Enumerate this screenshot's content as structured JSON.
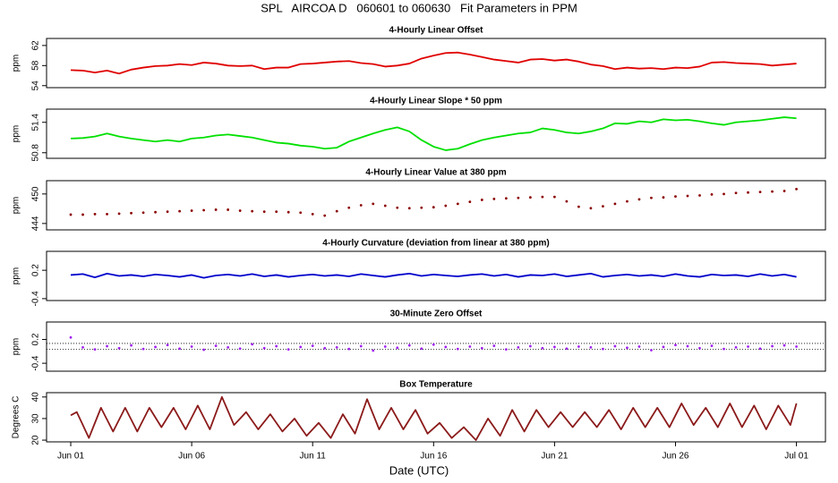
{
  "title": "SPL   AIRCOA D   060601 to 060630   Fit Parameters in PPM",
  "xlabel": "Date (UTC)",
  "chart_data": [
    {
      "type": "line",
      "title": "4-Hourly Linear Offset",
      "ylabel": "ppm",
      "color": "#e00000",
      "style": "line",
      "xlim": [
        -1,
        31.2
      ],
      "ylim": [
        53.6,
        63.4
      ],
      "yticks": [
        54,
        58,
        62
      ],
      "x": [
        0,
        0.5,
        1,
        1.5,
        2,
        2.5,
        3,
        3.5,
        4,
        4.5,
        5,
        5.5,
        6,
        6.5,
        7,
        7.5,
        8,
        8.5,
        9,
        9.5,
        10,
        10.5,
        11,
        11.5,
        12,
        12.5,
        13,
        13.5,
        14,
        14.5,
        15,
        15.5,
        16,
        16.5,
        17,
        17.5,
        18,
        18.5,
        19,
        19.5,
        20,
        20.5,
        21,
        21.5,
        22,
        22.5,
        23,
        23.5,
        24,
        24.5,
        25,
        25.5,
        26,
        26.5,
        27,
        27.5,
        28,
        28.5,
        29,
        29.5,
        30
      ],
      "values": [
        57.1,
        57.0,
        56.6,
        57.0,
        56.4,
        57.2,
        57.6,
        57.9,
        58.0,
        58.3,
        58.1,
        58.6,
        58.4,
        58.0,
        57.9,
        58.0,
        57.3,
        57.6,
        57.6,
        58.3,
        58.4,
        58.6,
        58.8,
        58.9,
        58.5,
        58.3,
        57.8,
        58.0,
        58.4,
        59.4,
        60.0,
        60.5,
        60.6,
        60.2,
        59.7,
        59.2,
        58.9,
        58.6,
        59.2,
        59.3,
        59.0,
        59.2,
        58.8,
        58.2,
        57.9,
        57.3,
        57.6,
        57.4,
        57.5,
        57.3,
        57.6,
        57.5,
        57.8,
        58.6,
        58.7,
        58.5,
        58.4,
        58.3,
        58.0,
        58.2,
        58.4
      ]
    },
    {
      "type": "line",
      "title": "4-Hourly Linear Slope * 50 ppm",
      "ylabel": "ppm",
      "color": "#00e000",
      "style": "line",
      "xlim": [
        -1,
        31.2
      ],
      "ylim": [
        50.69,
        51.66
      ],
      "yticks": [
        50.8,
        51.4
      ],
      "x": [
        0,
        0.5,
        1,
        1.5,
        2,
        2.5,
        3,
        3.5,
        4,
        4.5,
        5,
        5.5,
        6,
        6.5,
        7,
        7.5,
        8,
        8.5,
        9,
        9.5,
        10,
        10.5,
        11,
        11.5,
        12,
        12.5,
        13,
        13.5,
        14,
        14.5,
        15,
        15.5,
        16,
        16.5,
        17,
        17.5,
        18,
        18.5,
        19,
        19.5,
        20,
        20.5,
        21,
        21.5,
        22,
        22.5,
        23,
        23.5,
        24,
        24.5,
        25,
        25.5,
        26,
        26.5,
        27,
        27.5,
        28,
        28.5,
        29,
        29.5,
        30
      ],
      "values": [
        51.08,
        51.09,
        51.12,
        51.18,
        51.12,
        51.08,
        51.05,
        51.02,
        51.05,
        51.02,
        51.08,
        51.1,
        51.14,
        51.16,
        51.13,
        51.1,
        51.05,
        51.0,
        50.98,
        50.94,
        50.92,
        50.88,
        50.9,
        51.02,
        51.1,
        51.18,
        51.25,
        51.3,
        51.22,
        51.05,
        50.92,
        50.85,
        50.88,
        50.97,
        51.05,
        51.1,
        51.14,
        51.18,
        51.2,
        51.28,
        51.25,
        51.2,
        51.18,
        51.22,
        51.28,
        51.38,
        51.37,
        51.42,
        51.4,
        51.46,
        51.44,
        51.45,
        51.42,
        51.38,
        51.35,
        51.4,
        51.42,
        51.44,
        51.47,
        51.5,
        51.48
      ]
    },
    {
      "type": "line",
      "title": "4-Hourly Linear Value at 380 ppm",
      "ylabel": "ppm",
      "color": "#8b0000",
      "style": "points",
      "xlim": [
        -1,
        31.2
      ],
      "ylim": [
        442.7,
        452.7
      ],
      "yticks": [
        444,
        450
      ],
      "x": [
        0,
        0.5,
        1,
        1.5,
        2,
        2.5,
        3,
        3.5,
        4,
        4.5,
        5,
        5.5,
        6,
        6.5,
        7,
        7.5,
        8,
        8.5,
        9,
        9.5,
        10,
        10.5,
        11,
        11.5,
        12,
        12.5,
        13,
        13.5,
        14,
        14.5,
        15,
        15.5,
        16,
        16.5,
        17,
        17.5,
        18,
        18.5,
        19,
        19.5,
        20,
        20.5,
        21,
        21.5,
        22,
        22.5,
        23,
        23.5,
        24,
        24.5,
        25,
        25.5,
        26,
        26.5,
        27,
        27.5,
        28,
        28.5,
        29,
        29.5,
        30
      ],
      "values": [
        445.8,
        445.8,
        445.9,
        445.9,
        446.0,
        446.1,
        446.2,
        446.3,
        446.4,
        446.5,
        446.6,
        446.7,
        446.8,
        446.8,
        446.6,
        446.5,
        446.4,
        446.4,
        446.3,
        446.2,
        445.9,
        445.6,
        446.5,
        447.2,
        447.7,
        448.0,
        447.6,
        447.2,
        447.1,
        447.2,
        447.3,
        447.6,
        448.0,
        448.4,
        448.8,
        449.0,
        449.1,
        449.2,
        449.3,
        449.4,
        449.4,
        448.5,
        447.4,
        447.1,
        447.5,
        448.0,
        448.5,
        448.9,
        449.2,
        449.3,
        449.5,
        449.6,
        449.7,
        449.9,
        450.0,
        450.2,
        450.3,
        450.4,
        450.5,
        450.6,
        451.0
      ]
    },
    {
      "type": "line",
      "title": "4-Hourly Curvature (deviation from linear at 380 ppm)",
      "ylabel": "ppm",
      "color": "#0000cc",
      "style": "line",
      "xlim": [
        -1,
        31.2
      ],
      "ylim": [
        -0.44,
        0.6
      ],
      "yticks": [
        -0.4,
        0.2
      ],
      "x": [
        0,
        0.5,
        1,
        1.5,
        2,
        2.5,
        3,
        3.5,
        4,
        4.5,
        5,
        5.5,
        6,
        6.5,
        7,
        7.5,
        8,
        8.5,
        9,
        9.5,
        10,
        10.5,
        11,
        11.5,
        12,
        12.5,
        13,
        13.5,
        14,
        14.5,
        15,
        15.5,
        16,
        16.5,
        17,
        17.5,
        18,
        18.5,
        19,
        19.5,
        20,
        20.5,
        21,
        21.5,
        22,
        22.5,
        23,
        23.5,
        24,
        24.5,
        25,
        25.5,
        26,
        26.5,
        27,
        27.5,
        28,
        28.5,
        29,
        29.5,
        30
      ],
      "values": [
        0.1,
        0.12,
        0.05,
        0.13,
        0.08,
        0.1,
        0.07,
        0.11,
        0.09,
        0.06,
        0.1,
        0.04,
        0.09,
        0.11,
        0.08,
        0.12,
        0.07,
        0.1,
        0.06,
        0.09,
        0.11,
        0.08,
        0.1,
        0.07,
        0.12,
        0.09,
        0.06,
        0.1,
        0.13,
        0.08,
        0.11,
        0.09,
        0.07,
        0.1,
        0.12,
        0.08,
        0.11,
        0.06,
        0.1,
        0.09,
        0.12,
        0.07,
        0.1,
        0.13,
        0.06,
        0.09,
        0.11,
        0.08,
        0.1,
        0.07,
        0.12,
        0.08,
        0.06,
        0.11,
        0.09,
        0.1,
        0.07,
        0.12,
        0.08,
        0.11,
        0.06
      ]
    },
    {
      "type": "line",
      "title": "30-Minute Zero Offset",
      "ylabel": "ppm",
      "color": "#a020f0",
      "style": "points",
      "xlim": [
        -1,
        31.2
      ],
      "ylim": [
        -0.6,
        0.64
      ],
      "yticks": [
        -0.4,
        0.2
      ],
      "hlines": [
        0.1,
        -0.05
      ],
      "x": [
        0,
        0.5,
        1,
        1.5,
        2,
        2.5,
        3,
        3.5,
        4,
        4.5,
        5,
        5.5,
        6,
        6.5,
        7,
        7.5,
        8,
        8.5,
        9,
        9.5,
        10,
        10.5,
        11,
        11.5,
        12,
        12.5,
        13,
        13.5,
        14,
        14.5,
        15,
        15.5,
        16,
        16.5,
        17,
        17.5,
        18,
        18.5,
        19,
        19.5,
        20,
        20.5,
        21,
        21.5,
        22,
        22.5,
        23,
        23.5,
        24,
        24.5,
        25,
        25.5,
        26,
        26.5,
        27,
        27.5,
        28,
        28.5,
        29,
        29.5,
        30
      ],
      "values": [
        0.25,
        0.0,
        -0.05,
        0.03,
        -0.02,
        0.05,
        -0.04,
        0.01,
        0.06,
        -0.03,
        0.02,
        -0.06,
        0.04,
        0.0,
        -0.03,
        0.08,
        -0.02,
        0.03,
        -0.05,
        0.01,
        0.04,
        -0.02,
        0.0,
        -0.04,
        0.03,
        -0.08,
        0.02,
        -0.01,
        0.05,
        -0.03,
        0.07,
        0.01,
        -0.04,
        0.02,
        -0.02,
        0.04,
        -0.05,
        0.0,
        0.03,
        -0.02,
        0.01,
        -0.03,
        0.02,
        0.0,
        -0.04,
        0.03,
        -0.01,
        0.02,
        -0.07,
        0.01,
        0.06,
        0.03,
        -0.02,
        0.04,
        -0.04,
        0.0,
        0.02,
        -0.03,
        0.03,
        0.05,
        0.02
      ]
    },
    {
      "type": "line",
      "title": "Box Temperature",
      "ylabel": "Degrees C",
      "color": "#8b1a1a",
      "style": "line",
      "xlim": [
        -1,
        31.2
      ],
      "ylim": [
        19.2,
        42
      ],
      "yticks": [
        20,
        30,
        40
      ],
      "xticks": [
        {
          "value": 0,
          "label": "Jun 01"
        },
        {
          "value": 5,
          "label": "Jun 06"
        },
        {
          "value": 10,
          "label": "Jun 11"
        },
        {
          "value": 15,
          "label": "Jun 16"
        },
        {
          "value": 20,
          "label": "Jun 21"
        },
        {
          "value": 25,
          "label": "Jun 26"
        },
        {
          "value": 30,
          "label": "Jul 01"
        }
      ],
      "x": [
        0,
        0.25,
        0.5,
        0.75,
        1,
        1.25,
        1.5,
        1.75,
        2,
        2.25,
        2.5,
        2.75,
        3,
        3.25,
        3.5,
        3.75,
        4,
        4.25,
        4.5,
        4.75,
        5,
        5.25,
        5.5,
        5.75,
        6,
        6.25,
        6.5,
        6.75,
        7,
        7.25,
        7.5,
        7.75,
        8,
        8.25,
        8.5,
        8.75,
        9,
        9.25,
        9.5,
        9.75,
        10,
        10.25,
        10.5,
        10.75,
        11,
        11.25,
        11.5,
        11.75,
        12,
        12.25,
        12.5,
        12.75,
        13,
        13.25,
        13.5,
        13.75,
        14,
        14.25,
        14.5,
        14.75,
        15,
        15.25,
        15.5,
        15.75,
        16,
        16.25,
        16.5,
        16.75,
        17,
        17.25,
        17.5,
        17.75,
        18,
        18.25,
        18.5,
        18.75,
        19,
        19.25,
        19.5,
        19.75,
        20,
        20.25,
        20.5,
        20.75,
        21,
        21.25,
        21.5,
        21.75,
        22,
        22.25,
        22.5,
        22.75,
        23,
        23.25,
        23.5,
        23.75,
        24,
        24.25,
        24.5,
        24.75,
        25,
        25.25,
        25.5,
        25.75,
        26,
        26.25,
        26.5,
        26.75,
        27,
        27.25,
        27.5,
        27.75,
        28,
        28.25,
        28.5,
        28.75,
        29,
        29.25,
        29.5,
        29.75,
        30
      ],
      "values": [
        31.5,
        33,
        27,
        21,
        28,
        35,
        29.5,
        24,
        29.5,
        35,
        29.5,
        24,
        29.5,
        35,
        30.5,
        26,
        30.5,
        35,
        30,
        25,
        30.5,
        36,
        30.5,
        25,
        32.5,
        40,
        33.5,
        27,
        30,
        33,
        29,
        25,
        28.5,
        32,
        28,
        24,
        27,
        30,
        26,
        22,
        25,
        28,
        24.5,
        21,
        26.5,
        32,
        27.5,
        23,
        31,
        39,
        32,
        25,
        30,
        35,
        30,
        25,
        29.5,
        34,
        28.5,
        23,
        25.5,
        28,
        24.5,
        21,
        23.5,
        26,
        23,
        20,
        25,
        30,
        26,
        22,
        28,
        34,
        29,
        24,
        29,
        34,
        30,
        26,
        29.5,
        33,
        29.5,
        26,
        29.5,
        33,
        29.5,
        26,
        30,
        34,
        29.5,
        25,
        30,
        35,
        30.5,
        26,
        30.5,
        35,
        30.5,
        26,
        31.5,
        37,
        32,
        27,
        31,
        35,
        30.5,
        26,
        31.5,
        37,
        31.5,
        26,
        31,
        36,
        30.5,
        25,
        30.5,
        36,
        31.5,
        27,
        37
      ]
    }
  ]
}
